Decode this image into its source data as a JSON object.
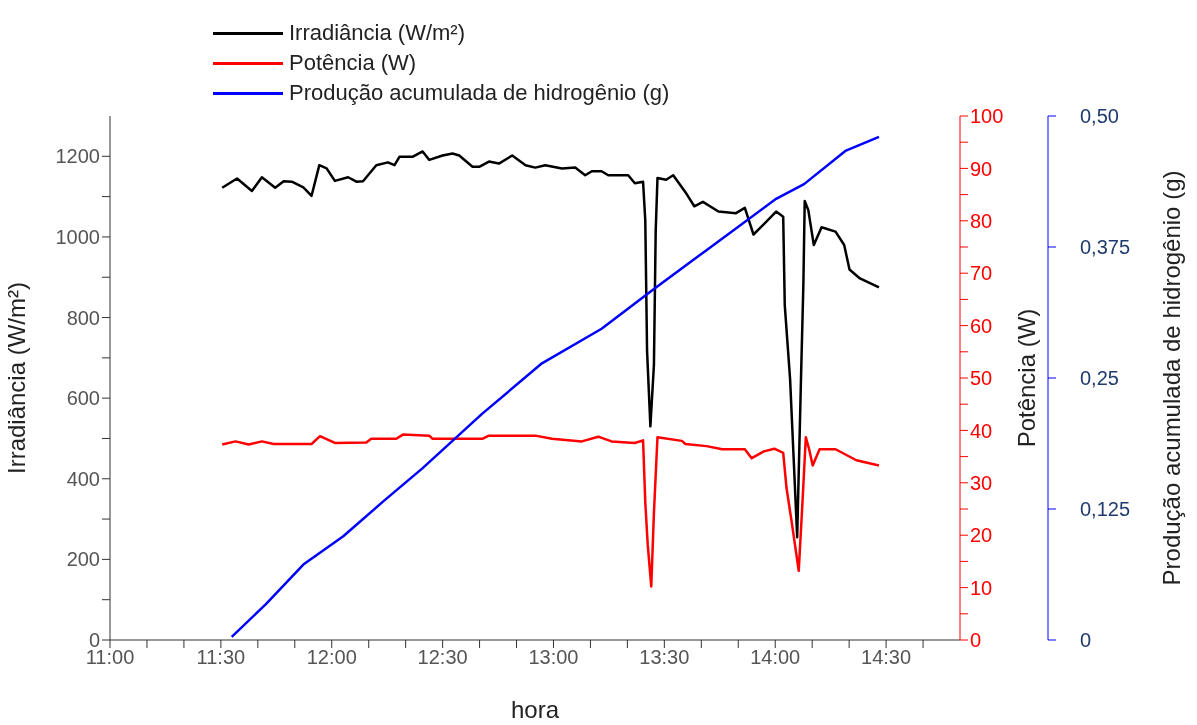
{
  "chart_data": {
    "type": "line",
    "xlabel": "hora",
    "ylabel": "Irradiância (W/m²)",
    "y2label": "Potência (W)",
    "y3label": "Produção acumulada de hidrogênio  (g)",
    "xlim": [
      11,
      14.8333
    ],
    "xticks": [
      {
        "value": 11,
        "label": "11:00"
      },
      {
        "value": 11.1667,
        "label": null
      },
      {
        "value": 11.3333,
        "label": null
      },
      {
        "value": 11.5,
        "label": "11:30"
      },
      {
        "value": 11.6667,
        "label": null
      },
      {
        "value": 11.8333,
        "label": null
      },
      {
        "value": 12,
        "label": "12:00"
      },
      {
        "value": 12.1667,
        "label": null
      },
      {
        "value": 12.3333,
        "label": null
      },
      {
        "value": 12.5,
        "label": "12:30"
      },
      {
        "value": 12.6667,
        "label": null
      },
      {
        "value": 12.8333,
        "label": null
      },
      {
        "value": 13,
        "label": "13:00"
      },
      {
        "value": 13.1667,
        "label": null
      },
      {
        "value": 13.3333,
        "label": null
      },
      {
        "value": 13.5,
        "label": "13:30"
      },
      {
        "value": 13.6667,
        "label": null
      },
      {
        "value": 13.8333,
        "label": null
      },
      {
        "value": 14,
        "label": "14:00"
      },
      {
        "value": 14.1667,
        "label": null
      },
      {
        "value": 14.3333,
        "label": null
      },
      {
        "value": 14.5,
        "label": "14:30"
      },
      {
        "value": 14.6667,
        "label": null
      }
    ],
    "ylim": [
      0,
      1300
    ],
    "yticks": [
      0,
      {
        "value": 100,
        "label": null
      },
      200,
      {
        "value": 300,
        "label": null
      },
      400,
      {
        "value": 500,
        "label": null
      },
      600,
      {
        "value": 700,
        "label": null
      },
      800,
      {
        "value": 900,
        "label": null
      },
      1000,
      {
        "value": 1100,
        "label": null
      },
      1200
    ],
    "y2lim": [
      0,
      100
    ],
    "y2ticks": [
      0,
      {
        "value": 5,
        "label": null
      },
      10,
      {
        "value": 15,
        "label": null
      },
      20,
      {
        "value": 25,
        "label": null
      },
      30,
      {
        "value": 35,
        "label": null
      },
      40,
      {
        "value": 45,
        "label": null
      },
      50,
      {
        "value": 55,
        "label": null
      },
      60,
      {
        "value": 65,
        "label": null
      },
      70,
      {
        "value": 75,
        "label": null
      },
      80,
      {
        "value": 85,
        "label": null
      },
      90,
      {
        "value": 95,
        "label": null
      },
      100
    ],
    "y3lim": [
      0,
      0.5
    ],
    "y3ticks": [
      0,
      {
        "value": 0.125,
        "label": "0,125"
      },
      {
        "value": 0.25,
        "label": "0,25"
      },
      {
        "value": 0.375,
        "label": "0,375"
      },
      {
        "value": 0.5,
        "label": "0,50"
      }
    ],
    "legend": "top",
    "grid": false,
    "series": [
      {
        "name": "Irradiância (W/m²)",
        "color": "#000000",
        "x": [
          11.506,
          11.573,
          11.64,
          11.685,
          11.745,
          11.783,
          11.82,
          11.872,
          11.909,
          11.944,
          11.977,
          12.014,
          12.074,
          12.111,
          12.141,
          12.201,
          12.253,
          12.283,
          12.306,
          12.366,
          12.41,
          12.44,
          12.5,
          12.545,
          12.575,
          12.635,
          12.665,
          12.709,
          12.754,
          12.814,
          12.874,
          12.918,
          12.963,
          13.038,
          13.098,
          13.143,
          13.173,
          13.217,
          13.247,
          13.337,
          13.367,
          13.404,
          13.414,
          13.422,
          13.437,
          13.453,
          13.461,
          13.469,
          13.508,
          13.54,
          13.595,
          13.635,
          13.674,
          13.744,
          13.823,
          13.863,
          13.902,
          13.949,
          14.004,
          14.036,
          14.043,
          14.067,
          14.099,
          14.117,
          14.127,
          14.133,
          14.149,
          14.174,
          14.209,
          14.272,
          14.311,
          14.335,
          14.382,
          14.468
        ],
        "values": [
          1122,
          1145,
          1114,
          1148,
          1122,
          1138,
          1137,
          1123,
          1102,
          1178,
          1170,
          1139,
          1148,
          1137,
          1138,
          1178,
          1185,
          1178,
          1199,
          1199,
          1212,
          1191,
          1202,
          1207,
          1202,
          1174,
          1174,
          1187,
          1182,
          1202,
          1178,
          1172,
          1178,
          1170,
          1172,
          1153,
          1163,
          1163,
          1153,
          1153,
          1133,
          1137,
          1041,
          718,
          530,
          683,
          1015,
          1146,
          1142,
          1153,
          1111,
          1076,
          1087,
          1063,
          1059,
          1072,
          1006,
          1032,
          1063,
          1050,
          831,
          648,
          255,
          666,
          884,
          1089,
          1067,
          980,
          1024,
          1013,
          980,
          919,
          897,
          875
        ]
      },
      {
        "name": "Potência (W)",
        "color": "#ff0000",
        "axis": "y2",
        "x": [
          11.506,
          11.566,
          11.626,
          11.685,
          11.738,
          11.909,
          11.947,
          12.014,
          12.156,
          12.178,
          12.291,
          12.321,
          12.44,
          12.455,
          12.679,
          12.709,
          12.918,
          12.993,
          13.128,
          13.202,
          13.262,
          13.367,
          13.404,
          13.414,
          13.425,
          13.441,
          13.453,
          13.469,
          13.579,
          13.595,
          13.69,
          13.761,
          13.863,
          13.894,
          13.949,
          13.996,
          14.036,
          14.051,
          14.075,
          14.106,
          14.122,
          14.138,
          14.153,
          14.169,
          14.2,
          14.272,
          14.366,
          14.468
        ],
        "values": [
          37.3,
          37.9,
          37.3,
          37.9,
          37.4,
          37.4,
          38.9,
          37.6,
          37.7,
          38.4,
          38.4,
          39.2,
          39,
          38.4,
          38.4,
          39,
          39,
          38.4,
          37.9,
          38.8,
          37.9,
          37.6,
          38.1,
          26.3,
          18.2,
          10.2,
          24.3,
          38.7,
          38,
          37.4,
          37,
          36.4,
          36.4,
          34.7,
          36,
          36.5,
          35.7,
          29,
          22.3,
          13.2,
          25.6,
          38.7,
          36.4,
          33.3,
          36.4,
          36.4,
          34.3,
          33.3
        ]
      },
      {
        "name": "Produção acumulada de hidrogênio  (g)",
        "color": "#0000ff",
        "axis": "y3",
        "x": [
          11.549,
          11.702,
          11.872,
          12.052,
          12.231,
          12.41,
          12.679,
          12.948,
          13.217,
          13.453,
          13.69,
          14.004,
          14.13,
          14.319,
          14.468
        ],
        "values": [
          0.003,
          0.034,
          0.072,
          0.099,
          0.132,
          0.164,
          0.216,
          0.264,
          0.297,
          0.335,
          0.372,
          0.421,
          0.435,
          0.467,
          0.48
        ]
      }
    ]
  }
}
